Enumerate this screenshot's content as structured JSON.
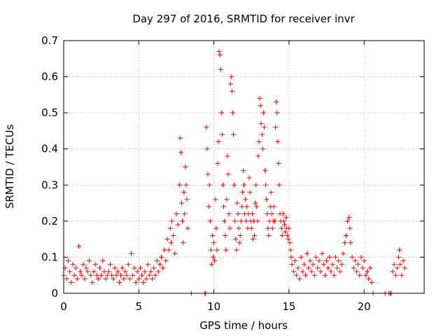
{
  "chart_data": {
    "type": "scatter",
    "title": "Day 297 of 2016, SRMTID for receiver invr",
    "xlabel": "GPS time / hours",
    "ylabel": "SRMTID / TECUs",
    "xlim": [
      0,
      24
    ],
    "ylim": [
      0,
      0.7
    ],
    "xticks": [
      0,
      5,
      10,
      15,
      20
    ],
    "xtick_labels": [
      "0",
      "5",
      "10",
      "15",
      "20"
    ],
    "yticks": [
      0,
      0.1,
      0.2,
      0.3,
      0.4,
      0.5,
      0.6,
      0.7
    ],
    "ytick_labels": [
      "0",
      "0.1",
      "0.2",
      "0.3",
      "0.4",
      "0.5",
      "0.6",
      "0.7"
    ],
    "grid": true,
    "marker": "plus",
    "color": "#ff0000",
    "series": [
      {
        "name": "SRMTID",
        "points": [
          [
            0.0,
            0.05
          ],
          [
            0.1,
            0.07
          ],
          [
            0.2,
            0.04
          ],
          [
            0.3,
            0.09
          ],
          [
            0.4,
            0.06
          ],
          [
            0.5,
            0.03
          ],
          [
            0.6,
            0.08
          ],
          [
            0.7,
            0.05
          ],
          [
            0.8,
            0.07
          ],
          [
            0.9,
            0.04
          ],
          [
            1.0,
            0.13
          ],
          [
            1.1,
            0.06
          ],
          [
            1.2,
            0.05
          ],
          [
            1.3,
            0.08
          ],
          [
            1.4,
            0.04
          ],
          [
            1.5,
            0.07
          ],
          [
            1.6,
            0.06
          ],
          [
            1.7,
            0.09
          ],
          [
            1.8,
            0.05
          ],
          [
            1.9,
            0.03
          ],
          [
            2.0,
            0.06
          ],
          [
            2.1,
            0.08
          ],
          [
            2.2,
            0.05
          ],
          [
            2.3,
            0.04
          ],
          [
            2.4,
            0.07
          ],
          [
            2.5,
            0.05
          ],
          [
            2.6,
            0.09
          ],
          [
            2.7,
            0.06
          ],
          [
            2.8,
            0.04
          ],
          [
            2.9,
            0.05
          ],
          [
            3.0,
            0.06
          ],
          [
            3.1,
            0.08
          ],
          [
            3.2,
            0.05
          ],
          [
            3.3,
            0.04
          ],
          [
            3.4,
            0.07
          ],
          [
            3.5,
            0.05
          ],
          [
            3.6,
            0.06
          ],
          [
            3.7,
            0.03
          ],
          [
            3.8,
            0.05
          ],
          [
            3.9,
            0.07
          ],
          [
            4.0,
            0.04
          ],
          [
            4.1,
            0.06
          ],
          [
            4.2,
            0.05
          ],
          [
            4.3,
            0.08
          ],
          [
            4.4,
            0.04
          ],
          [
            4.5,
            0.11
          ],
          [
            4.6,
            0.05
          ],
          [
            4.7,
            0.07
          ],
          [
            4.8,
            0.03
          ],
          [
            4.9,
            0.06
          ],
          [
            5.0,
            0.04
          ],
          [
            5.1,
            0.07
          ],
          [
            5.2,
            0.05
          ],
          [
            5.3,
            0.03
          ],
          [
            5.4,
            0.06
          ],
          [
            5.5,
            0.04
          ],
          [
            5.6,
            0.08
          ],
          [
            5.7,
            0.05
          ],
          [
            5.8,
            0.06
          ],
          [
            5.9,
            0.04
          ],
          [
            6.0,
            0.07
          ],
          [
            6.1,
            0.05
          ],
          [
            6.2,
            0.09
          ],
          [
            6.3,
            0.06
          ],
          [
            6.4,
            0.08
          ],
          [
            6.5,
            0.1
          ],
          [
            6.6,
            0.07
          ],
          [
            6.7,
            0.12
          ],
          [
            6.8,
            0.09
          ],
          [
            6.9,
            0.15
          ],
          [
            7.0,
            0.12
          ],
          [
            7.1,
            0.18
          ],
          [
            7.15,
            0.14
          ],
          [
            7.2,
            0.2
          ],
          [
            7.3,
            0.16
          ],
          [
            7.4,
            0.11
          ],
          [
            7.5,
            0.22
          ],
          [
            7.6,
            0.19
          ],
          [
            7.7,
            0.3
          ],
          [
            7.75,
            0.43
          ],
          [
            7.8,
            0.39
          ],
          [
            7.85,
            0.25
          ],
          [
            7.9,
            0.2
          ],
          [
            7.95,
            0.14
          ],
          [
            8.0,
            0.28
          ],
          [
            8.05,
            0.22
          ],
          [
            8.1,
            0.35
          ],
          [
            8.15,
            0.3
          ],
          [
            8.2,
            0.26
          ],
          [
            8.25,
            0.18
          ],
          [
            8.5,
            0.0
          ],
          [
            9.4,
            0.0
          ],
          [
            9.45,
            0.0
          ],
          [
            9.5,
            0.46
          ],
          [
            9.55,
            0.4
          ],
          [
            9.6,
            0.33
          ],
          [
            9.65,
            0.24
          ],
          [
            9.7,
            0.3
          ],
          [
            9.75,
            0.2
          ],
          [
            9.8,
            0.12
          ],
          [
            9.85,
            0.08
          ],
          [
            9.9,
            0.16
          ],
          [
            9.95,
            0.1
          ],
          [
            10.0,
            0.14
          ],
          [
            10.05,
            0.09
          ],
          [
            10.1,
            0.26
          ],
          [
            10.15,
            0.18
          ],
          [
            10.2,
            0.12
          ],
          [
            10.25,
            0.36
          ],
          [
            10.3,
            0.42
          ],
          [
            10.35,
            0.67
          ],
          [
            10.4,
            0.66
          ],
          [
            10.45,
            0.62
          ],
          [
            10.5,
            0.5
          ],
          [
            10.55,
            0.44
          ],
          [
            10.6,
            0.3
          ],
          [
            10.65,
            0.24
          ],
          [
            10.7,
            0.2
          ],
          [
            10.75,
            0.16
          ],
          [
            10.8,
            0.12
          ],
          [
            10.85,
            0.26
          ],
          [
            10.9,
            0.38
          ],
          [
            10.95,
            0.33
          ],
          [
            11.0,
            0.22
          ],
          [
            11.05,
            0.18
          ],
          [
            11.1,
            0.58
          ],
          [
            11.15,
            0.6
          ],
          [
            11.2,
            0.56
          ],
          [
            11.25,
            0.5
          ],
          [
            11.3,
            0.44
          ],
          [
            11.35,
            0.3
          ],
          [
            11.4,
            0.2
          ],
          [
            11.45,
            0.15
          ],
          [
            11.5,
            0.12
          ],
          [
            11.55,
            0.25
          ],
          [
            11.6,
            0.22
          ],
          [
            11.65,
            0.18
          ],
          [
            11.7,
            0.14
          ],
          [
            11.75,
            0.16
          ],
          [
            11.8,
            0.2
          ],
          [
            11.85,
            0.24
          ],
          [
            11.9,
            0.28
          ],
          [
            11.95,
            0.34
          ],
          [
            12.0,
            0.3
          ],
          [
            12.05,
            0.22
          ],
          [
            12.1,
            0.26
          ],
          [
            12.15,
            0.2
          ],
          [
            12.2,
            0.24
          ],
          [
            12.25,
            0.18
          ],
          [
            12.3,
            0.22
          ],
          [
            12.35,
            0.32
          ],
          [
            12.4,
            0.28
          ],
          [
            12.45,
            0.2
          ],
          [
            12.5,
            0.18
          ],
          [
            12.55,
            0.22
          ],
          [
            12.6,
            0.15
          ],
          [
            12.65,
            0.2
          ],
          [
            12.7,
            0.16
          ],
          [
            12.75,
            0.25
          ],
          [
            12.8,
            0.3
          ],
          [
            12.85,
            0.24
          ],
          [
            12.9,
            0.2
          ],
          [
            12.95,
            0.38
          ],
          [
            13.0,
            0.42
          ],
          [
            13.05,
            0.54
          ],
          [
            13.1,
            0.52
          ],
          [
            13.15,
            0.47
          ],
          [
            13.2,
            0.44
          ],
          [
            13.25,
            0.4
          ],
          [
            13.3,
            0.5
          ],
          [
            13.35,
            0.46
          ],
          [
            13.4,
            0.34
          ],
          [
            13.45,
            0.3
          ],
          [
            13.5,
            0.26
          ],
          [
            13.55,
            0.22
          ],
          [
            13.6,
            0.18
          ],
          [
            13.65,
            0.16
          ],
          [
            13.7,
            0.2
          ],
          [
            13.75,
            0.24
          ],
          [
            13.8,
            0.28
          ],
          [
            13.85,
            0.22
          ],
          [
            13.9,
            0.18
          ],
          [
            13.95,
            0.2
          ],
          [
            14.0,
            0.24
          ],
          [
            14.05,
            0.2
          ],
          [
            14.1,
            0.46
          ],
          [
            14.15,
            0.53
          ],
          [
            14.2,
            0.5
          ],
          [
            14.25,
            0.42
          ],
          [
            14.3,
            0.36
          ],
          [
            14.35,
            0.3
          ],
          [
            14.4,
            0.22
          ],
          [
            14.45,
            0.2
          ],
          [
            14.5,
            0.18
          ],
          [
            14.55,
            0.16
          ],
          [
            14.6,
            0.22
          ],
          [
            14.65,
            0.2
          ],
          [
            14.7,
            0.19
          ],
          [
            14.75,
            0.17
          ],
          [
            14.8,
            0.21
          ],
          [
            14.85,
            0.18
          ],
          [
            14.9,
            0.16
          ],
          [
            14.95,
            0.15
          ],
          [
            15.0,
            0.18
          ],
          [
            15.05,
            0.14
          ],
          [
            15.1,
            0.12
          ],
          [
            15.15,
            0.1
          ],
          [
            15.2,
            0.08
          ],
          [
            15.3,
            0.06
          ],
          [
            15.4,
            0.09
          ],
          [
            15.5,
            0.05
          ],
          [
            15.6,
            0.07
          ],
          [
            15.7,
            0.04
          ],
          [
            15.8,
            0.1
          ],
          [
            15.9,
            0.06
          ],
          [
            16.0,
            0.08
          ],
          [
            16.1,
            0.05
          ],
          [
            16.2,
            0.11
          ],
          [
            16.3,
            0.07
          ],
          [
            16.4,
            0.09
          ],
          [
            16.5,
            0.06
          ],
          [
            16.6,
            0.08
          ],
          [
            16.7,
            0.05
          ],
          [
            16.8,
            0.1
          ],
          [
            16.9,
            0.07
          ],
          [
            17.0,
            0.09
          ],
          [
            17.1,
            0.06
          ],
          [
            17.2,
            0.11
          ],
          [
            17.3,
            0.08
          ],
          [
            17.4,
            0.05
          ],
          [
            17.5,
            0.09
          ],
          [
            17.6,
            0.07
          ],
          [
            17.7,
            0.1
          ],
          [
            17.8,
            0.06
          ],
          [
            17.9,
            0.08
          ],
          [
            18.0,
            0.05
          ],
          [
            18.1,
            0.1
          ],
          [
            18.2,
            0.07
          ],
          [
            18.3,
            0.09
          ],
          [
            18.4,
            0.06
          ],
          [
            18.5,
            0.08
          ],
          [
            18.6,
            0.11
          ],
          [
            18.7,
            0.14
          ],
          [
            18.8,
            0.16
          ],
          [
            18.9,
            0.2
          ],
          [
            19.0,
            0.21
          ],
          [
            19.05,
            0.18
          ],
          [
            19.1,
            0.14
          ],
          [
            19.2,
            0.1
          ],
          [
            19.3,
            0.07
          ],
          [
            19.4,
            0.09
          ],
          [
            19.5,
            0.06
          ],
          [
            19.6,
            0.08
          ],
          [
            19.7,
            0.05
          ],
          [
            19.8,
            0.1
          ],
          [
            19.9,
            0.07
          ],
          [
            20.0,
            0.09
          ],
          [
            20.1,
            0.05
          ],
          [
            20.2,
            0.06
          ],
          [
            20.3,
            0.04
          ],
          [
            20.4,
            0.07
          ],
          [
            20.5,
            0.03
          ],
          [
            20.6,
            0.0
          ],
          [
            21.4,
            0.0
          ],
          [
            21.65,
            0.0
          ],
          [
            21.75,
            0.0
          ],
          [
            21.8,
            0.0
          ],
          [
            21.9,
            0.06
          ],
          [
            22.0,
            0.08
          ],
          [
            22.1,
            0.05
          ],
          [
            22.2,
            0.07
          ],
          [
            22.3,
            0.1
          ],
          [
            22.35,
            0.12
          ],
          [
            22.4,
            0.08
          ],
          [
            22.5,
            0.05
          ],
          [
            22.6,
            0.09
          ],
          [
            22.7,
            0.07
          ]
        ]
      }
    ]
  }
}
